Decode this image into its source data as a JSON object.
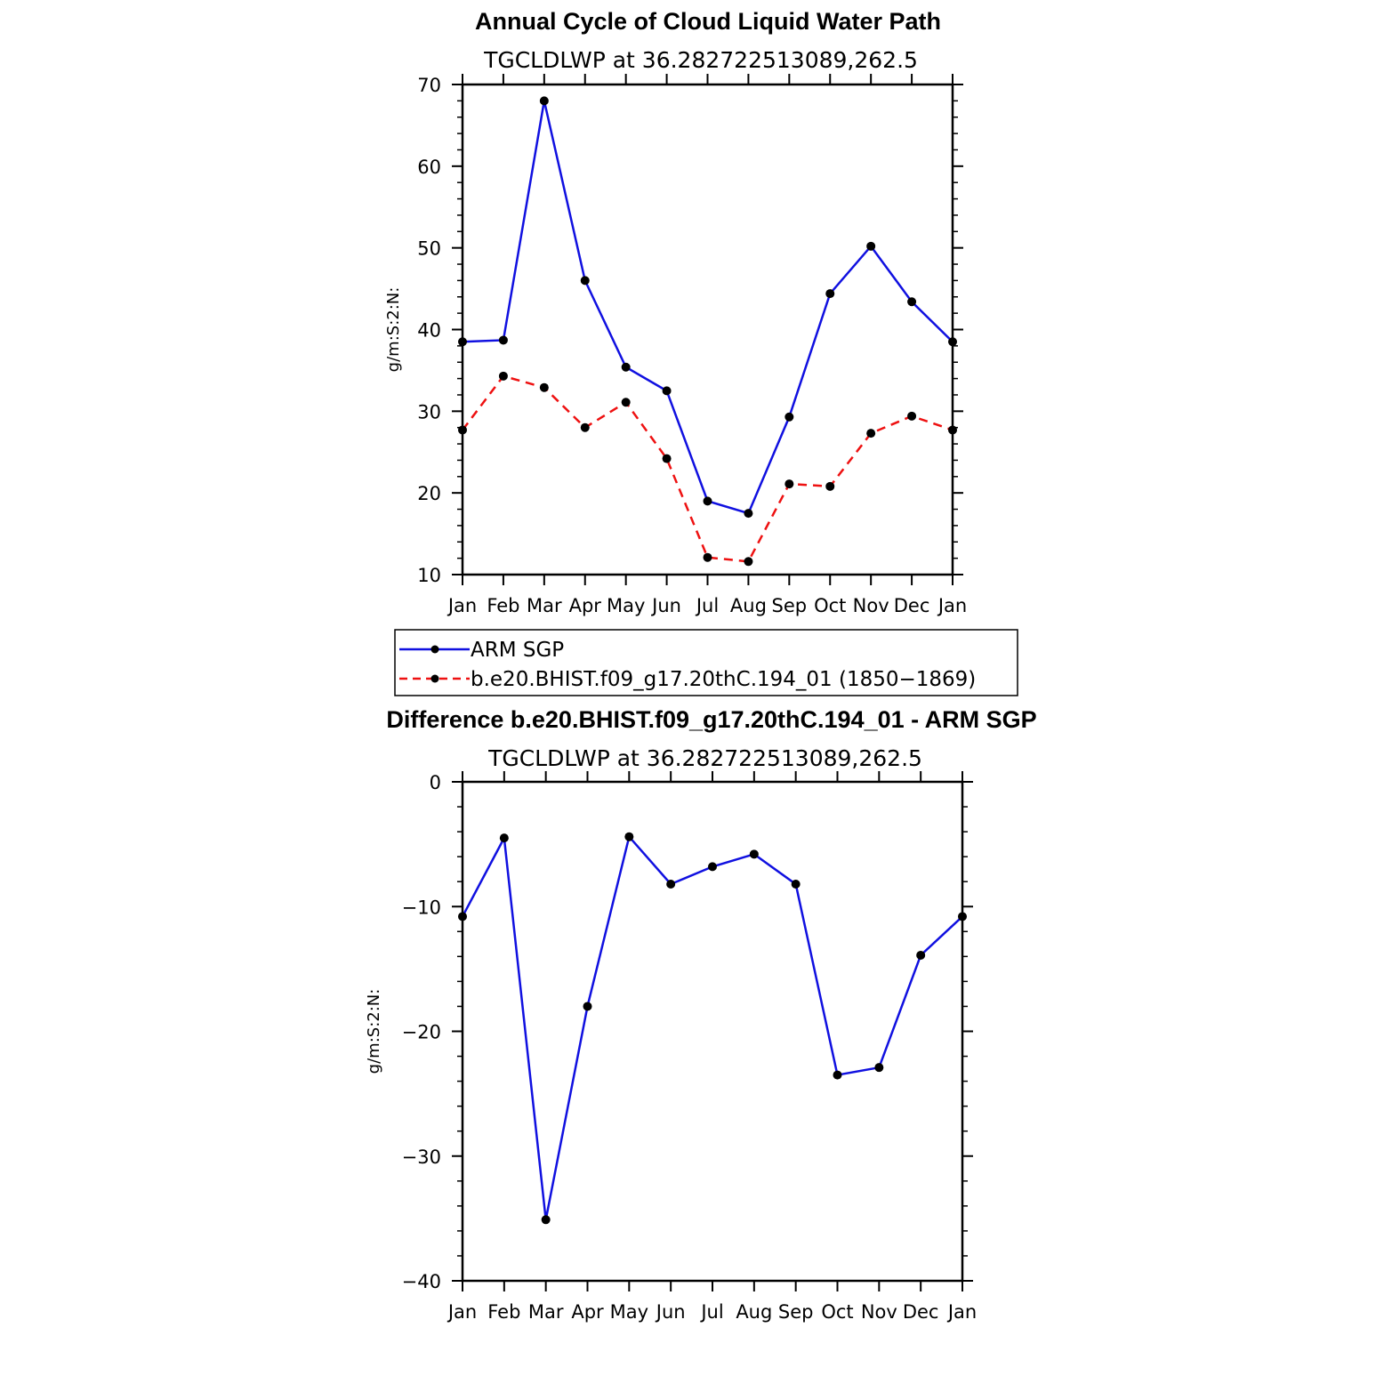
{
  "chart_data": [
    {
      "type": "line",
      "title": "Annual Cycle of Cloud Liquid Water Path",
      "subtitle": "TGCLDLWP  at  36.282722513089,262.5",
      "xlabel": "",
      "ylabel": "g/m:S:2:N:",
      "categories": [
        "Jan",
        "Feb",
        "Mar",
        "Apr",
        "May",
        "Jun",
        "Jul",
        "Aug",
        "Sep",
        "Oct",
        "Nov",
        "Dec",
        "Jan"
      ],
      "ylim": [
        10,
        70
      ],
      "yticks": [
        10,
        20,
        30,
        40,
        50,
        60,
        70
      ],
      "ytick_labels": [
        "10",
        "20",
        "30",
        "40",
        "50",
        "60",
        "70"
      ],
      "series": [
        {
          "name": "ARM  SGP",
          "color": "#1010e0",
          "dash": "solid",
          "values": [
            38.5,
            38.7,
            68.0,
            46.0,
            35.4,
            32.5,
            19.0,
            17.5,
            29.3,
            44.4,
            50.2,
            43.4,
            38.5
          ]
        },
        {
          "name": "b.e20.BHIST.f09_g17.20thC.194_01  (1850−1869)",
          "color": "#ee1111",
          "dash": "dashed",
          "values": [
            27.7,
            34.3,
            32.9,
            28.0,
            31.1,
            24.2,
            12.1,
            11.6,
            21.1,
            20.8,
            27.3,
            29.4,
            27.7
          ]
        }
      ],
      "legend": [
        {
          "label": "ARM  SGP",
          "color": "#1010e0",
          "dash": "solid"
        },
        {
          "label": "b.e20.BHIST.f09_g17.20thC.194_01  (1850−1869)",
          "color": "#ee1111",
          "dash": "dashed"
        }
      ]
    },
    {
      "type": "line",
      "title": "Difference b.e20.BHIST.f09_g17.20thC.194_01 - ARM SGP",
      "subtitle": "TGCLDLWP  at  36.282722513089,262.5",
      "xlabel": "",
      "ylabel": "g/m:S:2:N:",
      "categories": [
        "Jan",
        "Feb",
        "Mar",
        "Apr",
        "May",
        "Jun",
        "Jul",
        "Aug",
        "Sep",
        "Oct",
        "Nov",
        "Dec",
        "Jan"
      ],
      "ylim": [
        -40,
        0
      ],
      "yticks": [
        -40,
        -30,
        -20,
        -10,
        0
      ],
      "ytick_labels": [
        "−40",
        "−30",
        "−20",
        "−10",
        "0"
      ],
      "series": [
        {
          "name": "Difference",
          "color": "#1010e0",
          "dash": "solid",
          "values": [
            -10.8,
            -4.5,
            -35.1,
            -18.0,
            -4.4,
            -8.2,
            -6.8,
            -5.8,
            -8.2,
            -23.5,
            -22.9,
            -13.9,
            -10.8
          ]
        }
      ]
    }
  ]
}
